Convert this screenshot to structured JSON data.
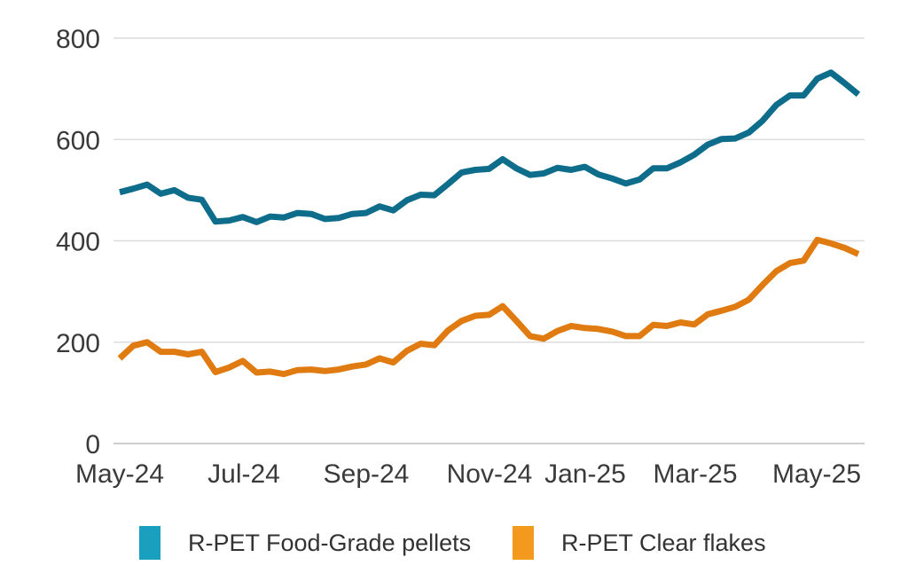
{
  "chart_data": {
    "type": "line",
    "title": "",
    "xlabel": "",
    "ylabel": "",
    "ylim": [
      0,
      800
    ],
    "yticks": [
      "0",
      "200",
      "400",
      "600",
      "800"
    ],
    "xtick_labels": [
      "May-24",
      "Jul-24",
      "Sep-24",
      "Nov-24",
      "Jan-25",
      "Mar-25",
      "May-25"
    ],
    "grid": true,
    "legend_position": "bottom",
    "series": [
      {
        "name": "R-PET Food-Grade pellets",
        "color": "#0f6d8c",
        "legend_color": "#1aa0be",
        "values": [
          496,
          503,
          511,
          493,
          500,
          485,
          481,
          438,
          440,
          447,
          437,
          448,
          446,
          455,
          453,
          443,
          445,
          453,
          455,
          468,
          460,
          480,
          491,
          490,
          512,
          535,
          540,
          542,
          561,
          543,
          530,
          533,
          544,
          540,
          546,
          531,
          523,
          513,
          521,
          543,
          543,
          555,
          570,
          590,
          601,
          602,
          614,
          637,
          668,
          687,
          687,
          720,
          732,
          711,
          689
        ]
      },
      {
        "name": "R-PET Clear flakes",
        "color": "#e07b12",
        "legend_color": "#f39a1e",
        "values": [
          168,
          193,
          200,
          181,
          181,
          176,
          181,
          141,
          150,
          163,
          140,
          142,
          137,
          145,
          146,
          143,
          146,
          152,
          156,
          168,
          160,
          183,
          197,
          194,
          223,
          242,
          252,
          254,
          271,
          242,
          212,
          207,
          222,
          232,
          228,
          226,
          221,
          212,
          212,
          234,
          232,
          239,
          235,
          255,
          262,
          270,
          284,
          313,
          340,
          356,
          361,
          402,
          395,
          386,
          374
        ]
      }
    ]
  }
}
